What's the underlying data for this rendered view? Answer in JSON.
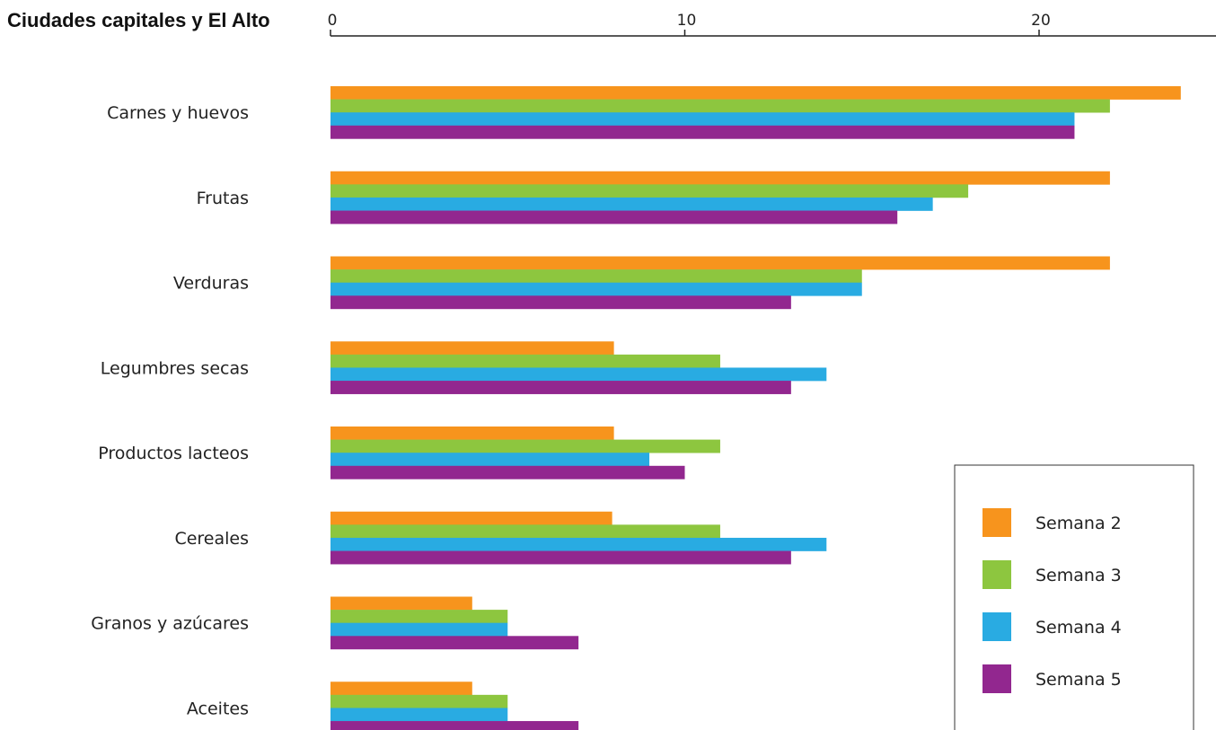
{
  "chart_data": {
    "type": "bar",
    "orientation": "horizontal",
    "title": "Ciudades capitales y El  Alto",
    "xlabel": "",
    "ylabel": "",
    "xlim": [
      0,
      24.5
    ],
    "x_ticks": [
      0,
      10,
      20
    ],
    "grid": false,
    "legend_position": "bottom-right",
    "categories": [
      "Carnes y huevos",
      "Frutas",
      "Verduras",
      "Legumbres secas",
      "Productos lacteos",
      "Cereales",
      "Granos y azúcares",
      "Aceites"
    ],
    "series": [
      {
        "name": "Semana 2",
        "color": "#F7941D",
        "values": [
          24,
          22,
          22,
          8,
          8,
          7.95,
          4,
          4
        ]
      },
      {
        "name": "Semana 3",
        "color": "#8DC63F",
        "values": [
          22,
          18,
          15,
          11,
          11,
          11,
          5,
          5
        ]
      },
      {
        "name": "Semana 4",
        "color": "#29ABE2",
        "values": [
          21,
          17,
          15,
          14,
          9,
          14,
          5,
          5
        ]
      },
      {
        "name": "Semana 5",
        "color": "#92278F",
        "values": [
          21,
          16,
          13,
          13,
          10,
          13,
          7,
          7
        ]
      }
    ]
  }
}
